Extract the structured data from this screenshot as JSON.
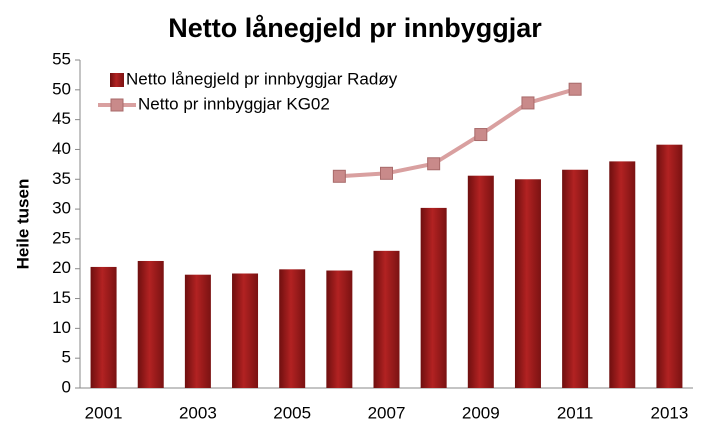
{
  "chart_data": {
    "type": "bar",
    "title": "Netto lånegjeld pr innbyggjar",
    "y_label": "Heile tusen",
    "categories": [
      "2001",
      null,
      "2003",
      null,
      "2005",
      null,
      "2007",
      null,
      "2009",
      null,
      "2011",
      null,
      "2013"
    ],
    "series": [
      {
        "name": "Netto lånegjeld pr innbyggjar Radøy",
        "type": "bar",
        "color": "#b22222",
        "values": [
          20.3,
          21.3,
          19.0,
          19.2,
          19.9,
          19.7,
          23.0,
          30.2,
          35.6,
          35.0,
          36.6,
          38.0,
          40.8
        ]
      },
      {
        "name": "Netto pr innbyggjar KG02",
        "type": "line",
        "color": "#d9a0a0",
        "values": [
          null,
          null,
          null,
          null,
          null,
          35.5,
          36.0,
          37.6,
          42.5,
          47.8,
          50.1,
          null,
          null
        ]
      }
    ],
    "ylim": [
      0,
      55
    ],
    "yticks": [
      0,
      5,
      10,
      15,
      20,
      25,
      30,
      35,
      40,
      45,
      50,
      55
    ],
    "legend": "top-left"
  }
}
